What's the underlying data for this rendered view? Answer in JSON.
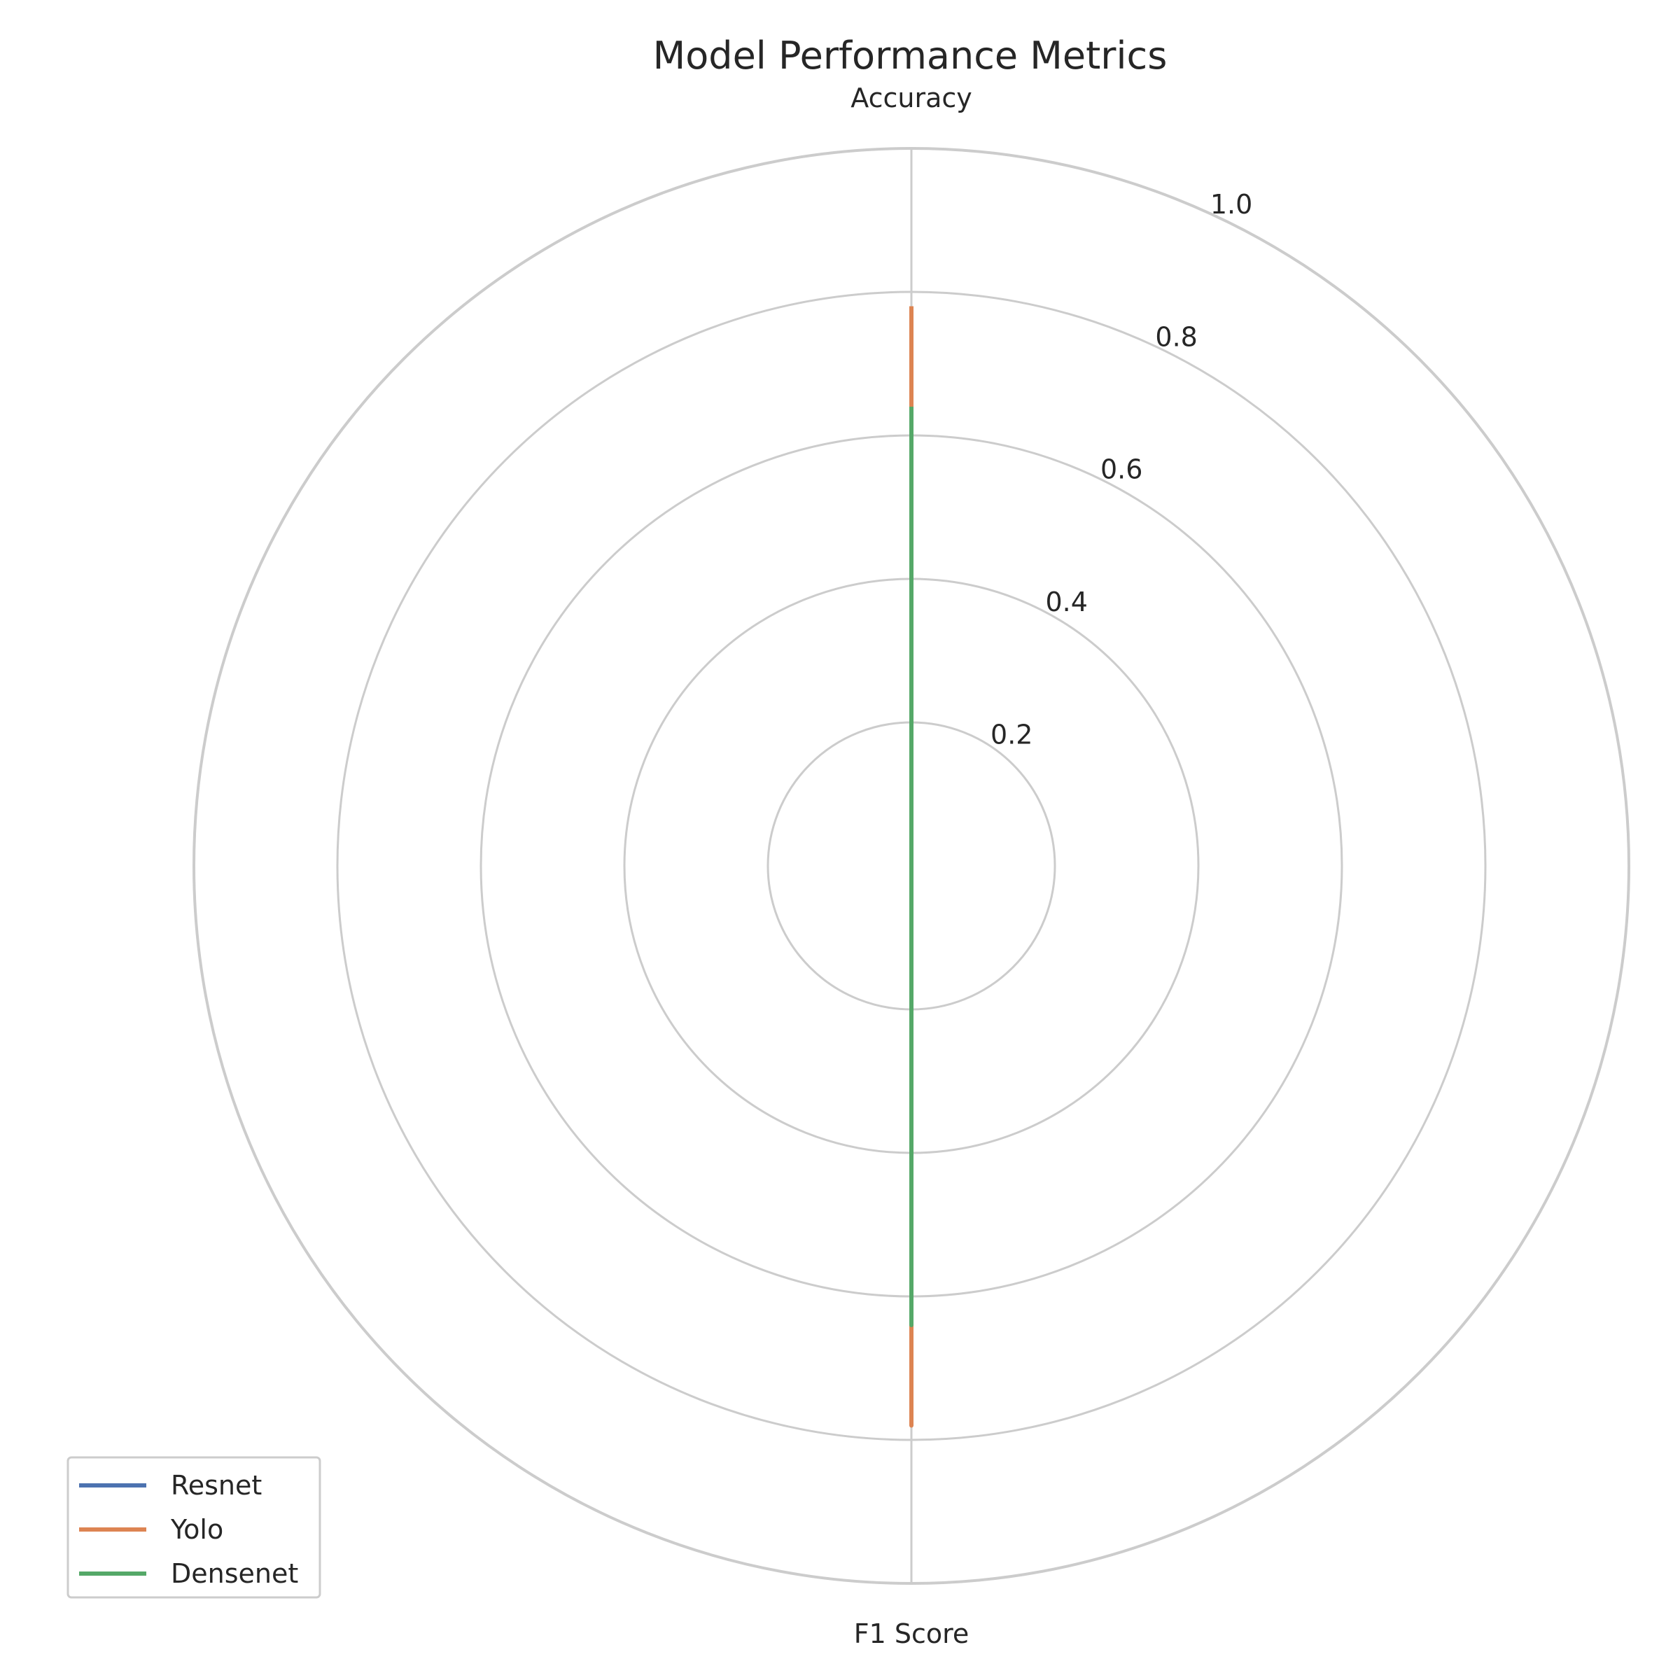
{
  "chart_data": {
    "type": "radar",
    "title": "Model Performance Metrics",
    "axes": [
      "Accuracy",
      "F1 Score"
    ],
    "rlim": [
      0,
      1.0
    ],
    "rticks": [
      0.2,
      0.4,
      0.6,
      0.8,
      1.0
    ],
    "rtick_labels": [
      "0.2",
      "0.4",
      "0.6",
      "0.8",
      "1.0"
    ],
    "series": [
      {
        "name": "Resnet",
        "values": [
          0.65,
          0.65
        ],
        "color": "#4c72b0"
      },
      {
        "name": "Yolo",
        "values": [
          0.78,
          0.78
        ],
        "color": "#dd8452"
      },
      {
        "name": "Densenet",
        "values": [
          0.64,
          0.64
        ],
        "color": "#55a868"
      }
    ],
    "grid": true,
    "legend_position": "lower-left"
  }
}
